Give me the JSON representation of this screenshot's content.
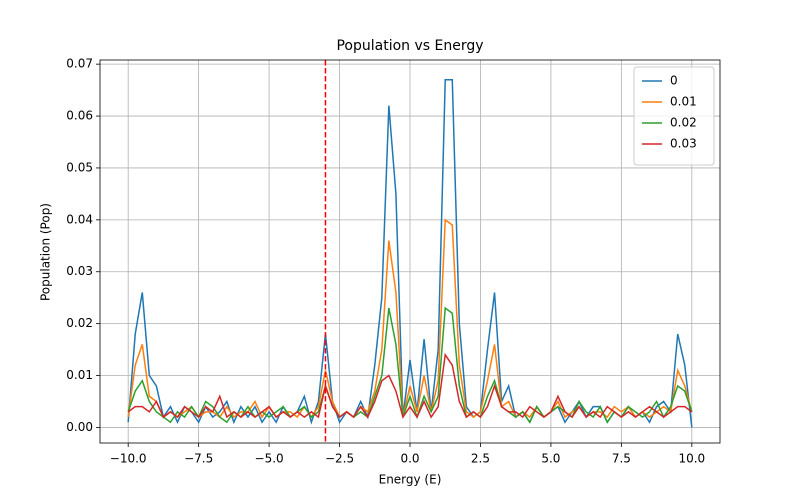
{
  "chart_data": {
    "type": "line",
    "title": "Population vs Energy",
    "xlabel": "Energy (E)",
    "ylabel": "Population (Pop)",
    "x": [
      -10,
      -9.75,
      -9.5,
      -9.25,
      -9,
      -8.75,
      -8.5,
      -8.25,
      -8,
      -7.75,
      -7.5,
      -7.25,
      -7,
      -6.75,
      -6.5,
      -6.25,
      -6,
      -5.75,
      -5.5,
      -5.25,
      -5,
      -4.75,
      -4.5,
      -4.25,
      -4,
      -3.75,
      -3.5,
      -3.25,
      -3,
      -2.75,
      -2.5,
      -2.25,
      -2,
      -1.75,
      -1.5,
      -1.25,
      -1,
      -0.75,
      -0.5,
      -0.25,
      0,
      0.25,
      0.5,
      0.75,
      1,
      1.25,
      1.5,
      1.75,
      2,
      2.25,
      2.5,
      2.75,
      3,
      3.25,
      3.5,
      3.75,
      4,
      4.25,
      4.5,
      4.75,
      5,
      5.25,
      5.5,
      5.75,
      6,
      6.25,
      6.5,
      6.75,
      7,
      7.25,
      7.5,
      7.75,
      8,
      8.25,
      8.5,
      8.75,
      9,
      9.25,
      9.5,
      9.75,
      10
    ],
    "series": [
      {
        "name": "0",
        "color": "#1f77b4",
        "values": [
          0.001,
          0.018,
          0.026,
          0.01,
          0.008,
          0.002,
          0.004,
          0.001,
          0.004,
          0.003,
          0.001,
          0.004,
          0.002,
          0.003,
          0.005,
          0.001,
          0.004,
          0.002,
          0.004,
          0.001,
          0.003,
          0.001,
          0.004,
          0.002,
          0.003,
          0.006,
          0.001,
          0.005,
          0.018,
          0.005,
          0.001,
          0.003,
          0.002,
          0.005,
          0.002,
          0.012,
          0.025,
          0.062,
          0.045,
          0.002,
          0.013,
          0.003,
          0.017,
          0.003,
          0.015,
          0.067,
          0.067,
          0.02,
          0.004,
          0.002,
          0.003,
          0.015,
          0.026,
          0.005,
          0.008,
          0.002,
          0.003,
          0.001,
          0.004,
          0.002,
          0.003,
          0.004,
          0.001,
          0.003,
          0.005,
          0.002,
          0.004,
          0.004,
          0.001,
          0.003,
          0.002,
          0.004,
          0.002,
          0.003,
          0.001,
          0.004,
          0.005,
          0.003,
          0.018,
          0.012,
          0.0
        ]
      },
      {
        "name": "0.01",
        "color": "#ff7f0e",
        "values": [
          0.002,
          0.012,
          0.016,
          0.006,
          0.005,
          0.002,
          0.003,
          0.002,
          0.003,
          0.004,
          0.002,
          0.003,
          0.003,
          0.002,
          0.004,
          0.002,
          0.003,
          0.003,
          0.005,
          0.002,
          0.004,
          0.002,
          0.003,
          0.003,
          0.002,
          0.004,
          0.002,
          0.004,
          0.011,
          0.005,
          0.002,
          0.003,
          0.002,
          0.004,
          0.003,
          0.007,
          0.015,
          0.036,
          0.026,
          0.002,
          0.008,
          0.003,
          0.01,
          0.003,
          0.009,
          0.04,
          0.039,
          0.012,
          0.003,
          0.002,
          0.003,
          0.009,
          0.016,
          0.004,
          0.005,
          0.002,
          0.003,
          0.002,
          0.004,
          0.002,
          0.003,
          0.005,
          0.002,
          0.003,
          0.004,
          0.002,
          0.003,
          0.003,
          0.002,
          0.004,
          0.003,
          0.004,
          0.002,
          0.003,
          0.002,
          0.003,
          0.004,
          0.003,
          0.011,
          0.008,
          0.003
        ]
      },
      {
        "name": "0.02",
        "color": "#2ca02c",
        "values": [
          0.003,
          0.007,
          0.009,
          0.005,
          0.003,
          0.002,
          0.001,
          0.003,
          0.002,
          0.004,
          0.002,
          0.005,
          0.004,
          0.002,
          0.001,
          0.003,
          0.002,
          0.004,
          0.002,
          0.003,
          0.002,
          0.003,
          0.004,
          0.002,
          0.003,
          0.004,
          0.002,
          0.003,
          0.008,
          0.004,
          0.002,
          0.003,
          0.002,
          0.003,
          0.002,
          0.006,
          0.01,
          0.023,
          0.016,
          0.002,
          0.006,
          0.002,
          0.006,
          0.003,
          0.006,
          0.023,
          0.022,
          0.008,
          0.002,
          0.003,
          0.002,
          0.006,
          0.009,
          0.004,
          0.003,
          0.002,
          0.003,
          0.001,
          0.004,
          0.002,
          0.003,
          0.004,
          0.003,
          0.002,
          0.005,
          0.003,
          0.002,
          0.004,
          0.001,
          0.003,
          0.002,
          0.004,
          0.003,
          0.002,
          0.003,
          0.005,
          0.002,
          0.004,
          0.008,
          0.007,
          0.003
        ]
      },
      {
        "name": "0.03",
        "color": "#d62728",
        "values": [
          0.003,
          0.004,
          0.004,
          0.003,
          0.005,
          0.002,
          0.003,
          0.002,
          0.004,
          0.003,
          0.002,
          0.004,
          0.003,
          0.006,
          0.002,
          0.003,
          0.002,
          0.003,
          0.002,
          0.003,
          0.004,
          0.002,
          0.003,
          0.002,
          0.003,
          0.002,
          0.003,
          0.002,
          0.008,
          0.004,
          0.002,
          0.003,
          0.002,
          0.004,
          0.002,
          0.005,
          0.009,
          0.01,
          0.007,
          0.002,
          0.004,
          0.002,
          0.005,
          0.002,
          0.004,
          0.014,
          0.012,
          0.005,
          0.002,
          0.003,
          0.002,
          0.004,
          0.008,
          0.004,
          0.003,
          0.003,
          0.002,
          0.004,
          0.003,
          0.002,
          0.003,
          0.006,
          0.003,
          0.002,
          0.004,
          0.002,
          0.003,
          0.002,
          0.004,
          0.003,
          0.002,
          0.003,
          0.002,
          0.003,
          0.004,
          0.003,
          0.002,
          0.003,
          0.004,
          0.004,
          0.003
        ]
      }
    ],
    "vline": {
      "x": -3,
      "color": "#ff0000"
    },
    "xlim": [
      -11,
      11
    ],
    "xticks": [
      {
        "value": -10,
        "label": "−10.0"
      },
      {
        "value": -7.5,
        "label": "−7.5"
      },
      {
        "value": -5,
        "label": "−5.0"
      },
      {
        "value": -2.5,
        "label": "−2.5"
      },
      {
        "value": 0,
        "label": "0.0"
      },
      {
        "value": 2.5,
        "label": "2.5"
      },
      {
        "value": 5,
        "label": "5.0"
      },
      {
        "value": 7.5,
        "label": "7.5"
      },
      {
        "value": 10,
        "label": "10.0"
      }
    ],
    "ylim": [
      -0.003,
      0.0708
    ],
    "yticks": [
      {
        "value": 0,
        "label": "0.00"
      },
      0.01,
      0.02,
      0.03,
      0.04,
      0.05,
      0.06,
      0.07
    ],
    "grid": true,
    "legend": "upper right"
  }
}
